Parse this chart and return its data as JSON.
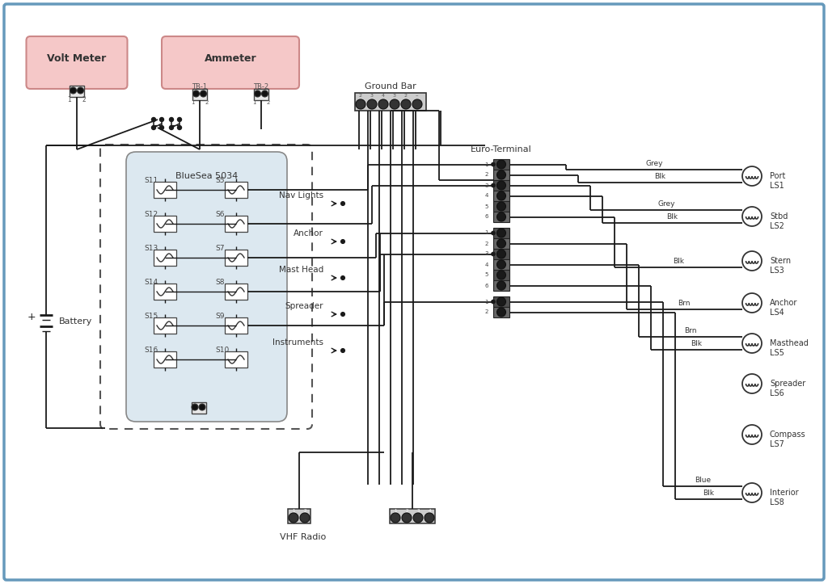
{
  "bg_color": "#ffffff",
  "border_color": "#6699bb",
  "line_color": "#1a1a1a",
  "pink_fill": "#f5c8c8",
  "pink_border": "#cc8888",
  "panel_fill": "#dce8f0",
  "volt_meter_label": "Volt Meter",
  "ammeter_label": "Ammeter",
  "bluesea_label": "BlueSea 5034",
  "battery_label": "Battery",
  "ground_bar_label": "Ground Bar",
  "euro_terminal_label": "Euro-Terminal",
  "vhf_radio_label": "VHF Radio",
  "tb1_label": "TB-1",
  "tb2_label": "TB-2",
  "nav_lights_label": "Nav Lights",
  "anchor_label": "Anchor",
  "mast_head_label": "Mast Head",
  "spreader_label": "Spreader",
  "instruments_label": "Instruments",
  "switches_left": [
    "S11",
    "S12",
    "S13",
    "S14",
    "S15",
    "S16"
  ],
  "switches_right": [
    "S5",
    "S6",
    "S7",
    "S8",
    "S9",
    "S10"
  ],
  "ls_labels": [
    "Port\nLS1",
    "Stbd\nLS2",
    "Stern\nLS3",
    "Anchor\nLS4",
    "Masthead\nLS5",
    "Spreader\nLS6",
    "Compass\nLS7",
    "Interior\nLS8"
  ],
  "wire_labels": {
    "row0": "Grey",
    "row1": "Blk",
    "row2": "Grey",
    "row3": "Blk",
    "row5": "Blk",
    "row7": "Brn",
    "row9": "Brn",
    "row11": "Blk",
    "row18": "Blue",
    "row19": "Blk"
  },
  "ls_to_rows": [
    [
      0,
      1
    ],
    [
      2,
      3
    ],
    [
      5,
      null
    ],
    [
      7,
      null
    ],
    [
      9,
      11
    ],
    [
      null,
      null
    ],
    [
      null,
      null
    ],
    [
      18,
      19
    ]
  ]
}
